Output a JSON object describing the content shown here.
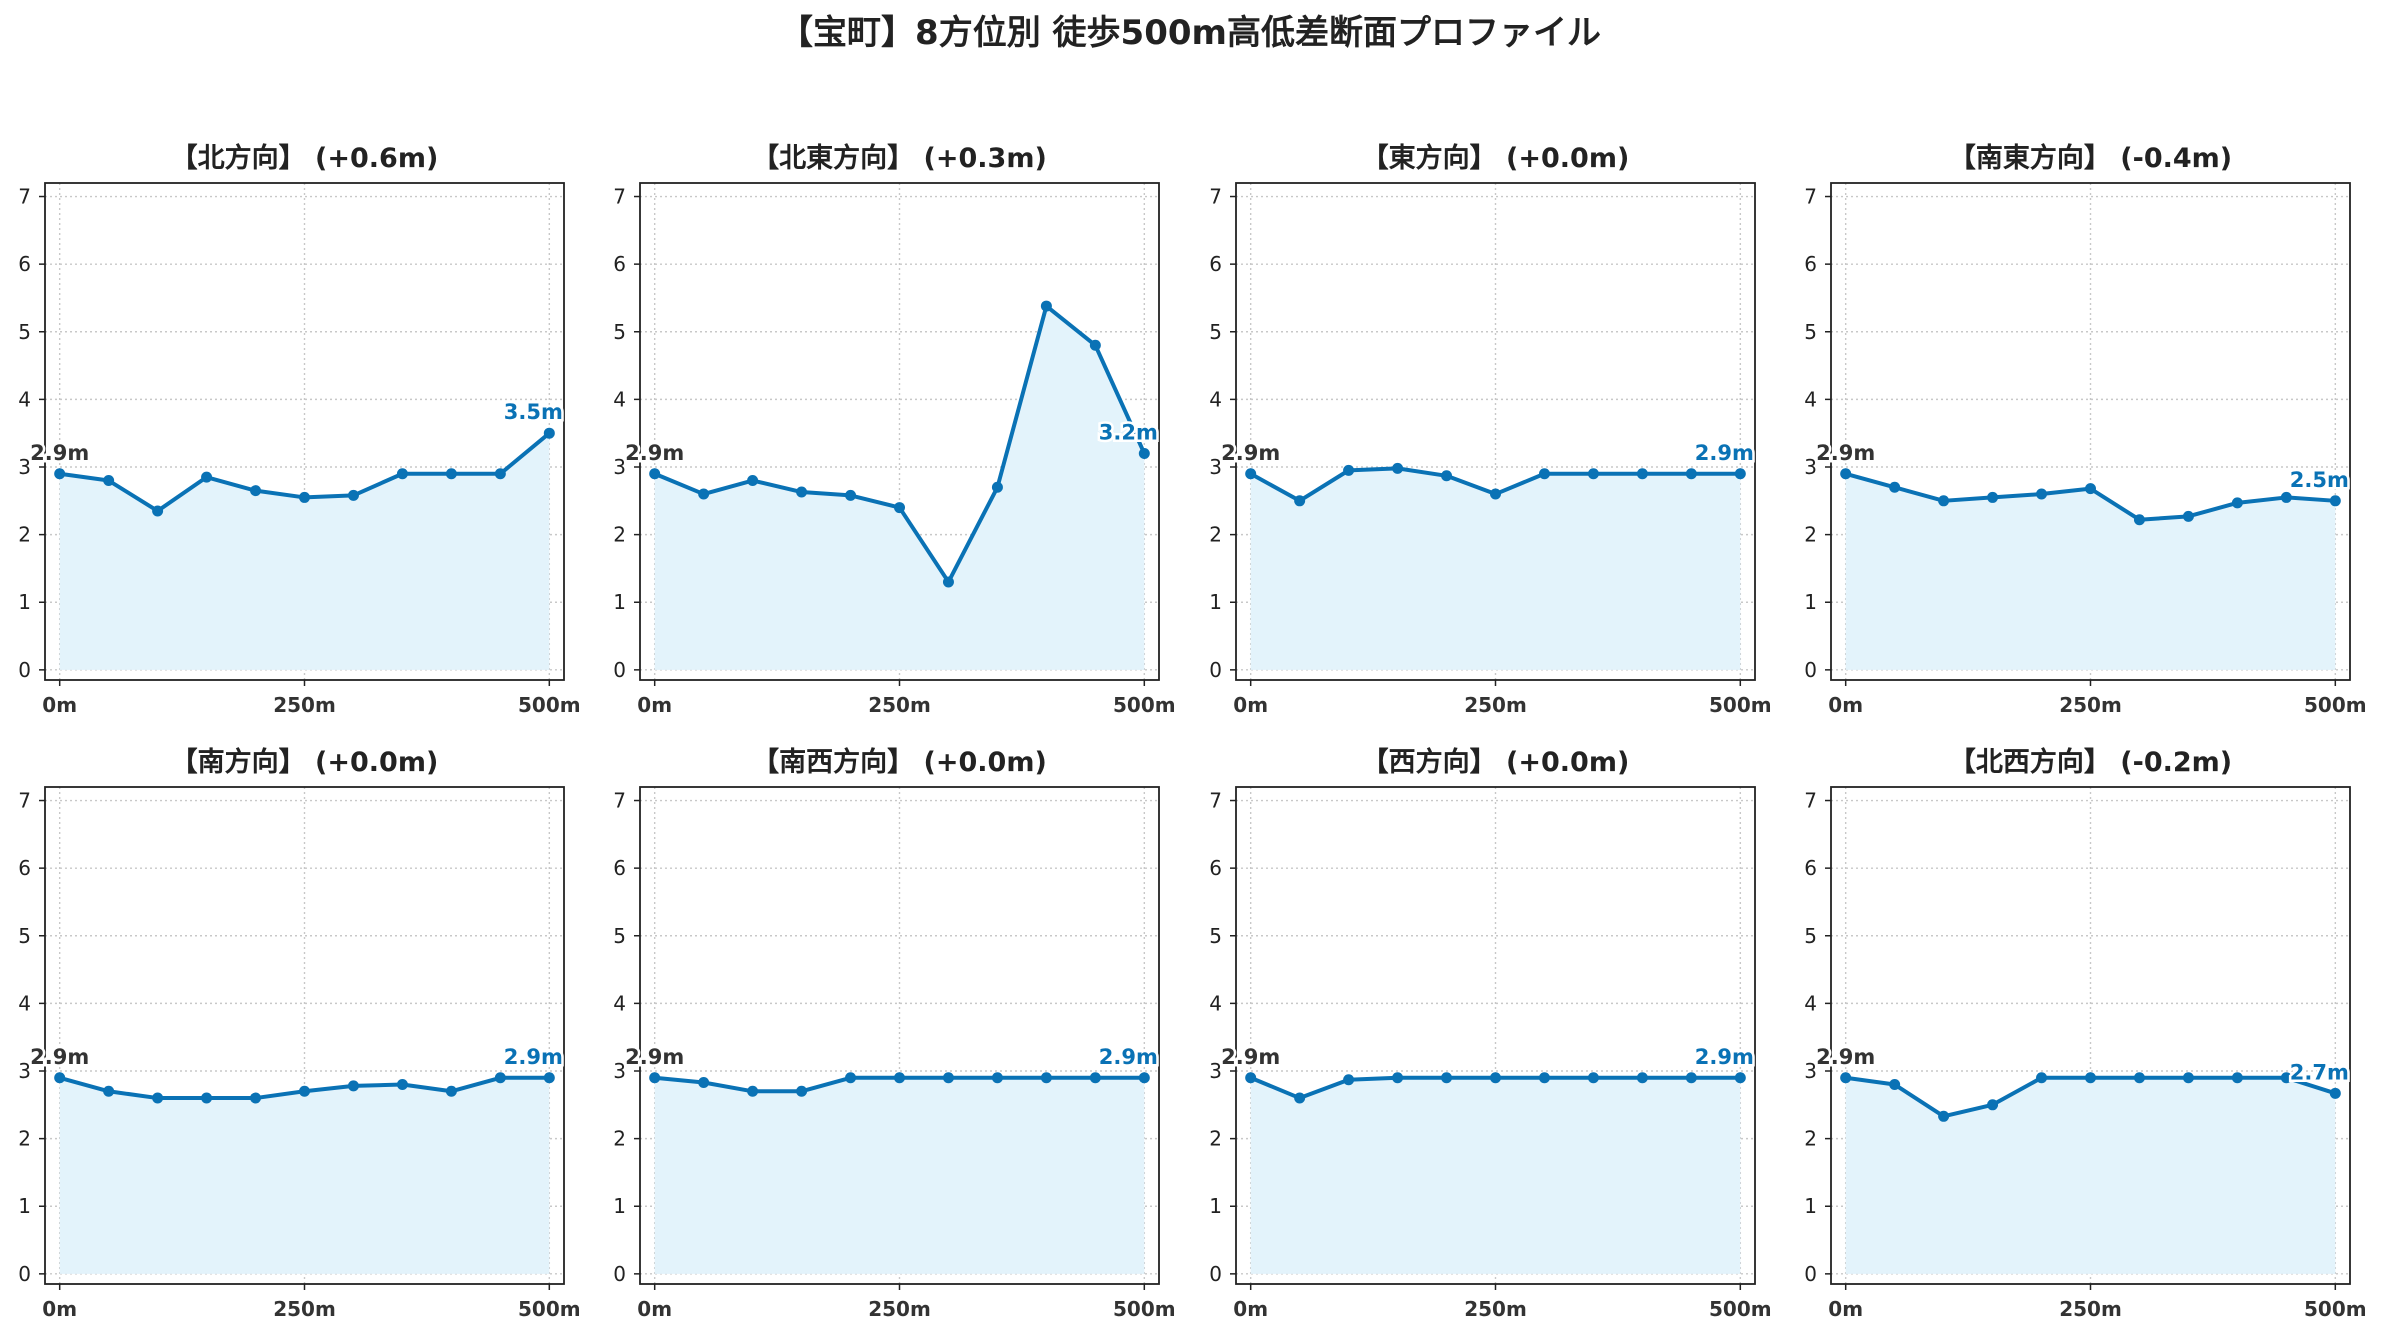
{
  "page_title": "【宝町】8方位別 徒歩500m高低差断面プロファイル",
  "colors": {
    "line": "#0a72b5",
    "fill": "#e3f3fb",
    "grid": "#c8c8c8",
    "axes": "#222222",
    "start_label": "#333333",
    "end_label": "#0a72b5"
  },
  "chart_data": [
    {
      "type": "area",
      "title": "【北方向】 (+0.6m)",
      "x": [
        0,
        50,
        100,
        150,
        200,
        250,
        300,
        350,
        400,
        450,
        500
      ],
      "values": [
        2.9,
        2.8,
        2.35,
        2.85,
        2.65,
        2.55,
        2.58,
        2.9,
        2.9,
        2.9,
        3.5
      ],
      "xticks": [
        "0m",
        "250m",
        "500m"
      ],
      "yticks": [
        "0",
        "1",
        "2",
        "3",
        "4",
        "5",
        "6",
        "7"
      ],
      "xlim": [
        -15,
        515
      ],
      "ylim": [
        -0.15,
        7.2
      ],
      "start_label": "2.9m",
      "end_label": "3.5m",
      "grid": true
    },
    {
      "type": "area",
      "title": "【北東方向】 (+0.3m)",
      "x": [
        0,
        50,
        100,
        150,
        200,
        250,
        300,
        350,
        400,
        450,
        500
      ],
      "values": [
        2.9,
        2.6,
        2.8,
        2.63,
        2.58,
        2.4,
        1.3,
        2.7,
        5.38,
        4.8,
        3.2
      ],
      "xticks": [
        "0m",
        "250m",
        "500m"
      ],
      "yticks": [
        "0",
        "1",
        "2",
        "3",
        "4",
        "5",
        "6",
        "7"
      ],
      "xlim": [
        -15,
        515
      ],
      "ylim": [
        -0.15,
        7.2
      ],
      "start_label": "2.9m",
      "end_label": "3.2m",
      "grid": true
    },
    {
      "type": "area",
      "title": "【東方向】 (+0.0m)",
      "x": [
        0,
        50,
        100,
        150,
        200,
        250,
        300,
        350,
        400,
        450,
        500
      ],
      "values": [
        2.9,
        2.5,
        2.95,
        2.98,
        2.87,
        2.6,
        2.9,
        2.9,
        2.9,
        2.9,
        2.9
      ],
      "xticks": [
        "0m",
        "250m",
        "500m"
      ],
      "yticks": [
        "0",
        "1",
        "2",
        "3",
        "4",
        "5",
        "6",
        "7"
      ],
      "xlim": [
        -15,
        515
      ],
      "ylim": [
        -0.15,
        7.2
      ],
      "start_label": "2.9m",
      "end_label": "2.9m",
      "grid": true
    },
    {
      "type": "area",
      "title": "【南東方向】 (-0.4m)",
      "x": [
        0,
        50,
        100,
        150,
        200,
        250,
        300,
        350,
        400,
        450,
        500
      ],
      "values": [
        2.9,
        2.7,
        2.5,
        2.55,
        2.6,
        2.68,
        2.22,
        2.27,
        2.47,
        2.55,
        2.5
      ],
      "xticks": [
        "0m",
        "250m",
        "500m"
      ],
      "yticks": [
        "0",
        "1",
        "2",
        "3",
        "4",
        "5",
        "6",
        "7"
      ],
      "xlim": [
        -15,
        515
      ],
      "ylim": [
        -0.15,
        7.2
      ],
      "start_label": "2.9m",
      "end_label": "2.5m",
      "grid": true
    },
    {
      "type": "area",
      "title": "【南方向】 (+0.0m)",
      "x": [
        0,
        50,
        100,
        150,
        200,
        250,
        300,
        350,
        400,
        450,
        500
      ],
      "values": [
        2.9,
        2.7,
        2.6,
        2.6,
        2.6,
        2.7,
        2.78,
        2.8,
        2.7,
        2.9,
        2.9
      ],
      "xticks": [
        "0m",
        "250m",
        "500m"
      ],
      "yticks": [
        "0",
        "1",
        "2",
        "3",
        "4",
        "5",
        "6",
        "7"
      ],
      "xlim": [
        -15,
        515
      ],
      "ylim": [
        -0.15,
        7.2
      ],
      "start_label": "2.9m",
      "end_label": "2.9m",
      "grid": true
    },
    {
      "type": "area",
      "title": "【南西方向】 (+0.0m)",
      "x": [
        0,
        50,
        100,
        150,
        200,
        250,
        300,
        350,
        400,
        450,
        500
      ],
      "values": [
        2.9,
        2.83,
        2.7,
        2.7,
        2.9,
        2.9,
        2.9,
        2.9,
        2.9,
        2.9,
        2.9
      ],
      "xticks": [
        "0m",
        "250m",
        "500m"
      ],
      "yticks": [
        "0",
        "1",
        "2",
        "3",
        "4",
        "5",
        "6",
        "7"
      ],
      "xlim": [
        -15,
        515
      ],
      "ylim": [
        -0.15,
        7.2
      ],
      "start_label": "2.9m",
      "end_label": "2.9m",
      "grid": true
    },
    {
      "type": "area",
      "title": "【西方向】 (+0.0m)",
      "x": [
        0,
        50,
        100,
        150,
        200,
        250,
        300,
        350,
        400,
        450,
        500
      ],
      "values": [
        2.9,
        2.6,
        2.87,
        2.9,
        2.9,
        2.9,
        2.9,
        2.9,
        2.9,
        2.9,
        2.9
      ],
      "xticks": [
        "0m",
        "250m",
        "500m"
      ],
      "yticks": [
        "0",
        "1",
        "2",
        "3",
        "4",
        "5",
        "6",
        "7"
      ],
      "xlim": [
        -15,
        515
      ],
      "ylim": [
        -0.15,
        7.2
      ],
      "start_label": "2.9m",
      "end_label": "2.9m",
      "grid": true
    },
    {
      "type": "area",
      "title": "【北西方向】 (-0.2m)",
      "x": [
        0,
        50,
        100,
        150,
        200,
        250,
        300,
        350,
        400,
        450,
        500
      ],
      "values": [
        2.9,
        2.8,
        2.33,
        2.5,
        2.9,
        2.9,
        2.9,
        2.9,
        2.9,
        2.9,
        2.67
      ],
      "xticks": [
        "0m",
        "250m",
        "500m"
      ],
      "yticks": [
        "0",
        "1",
        "2",
        "3",
        "4",
        "5",
        "6",
        "7"
      ],
      "xlim": [
        -15,
        515
      ],
      "ylim": [
        -0.15,
        7.2
      ],
      "start_label": "2.9m",
      "end_label": "2.7m",
      "grid": true
    }
  ]
}
